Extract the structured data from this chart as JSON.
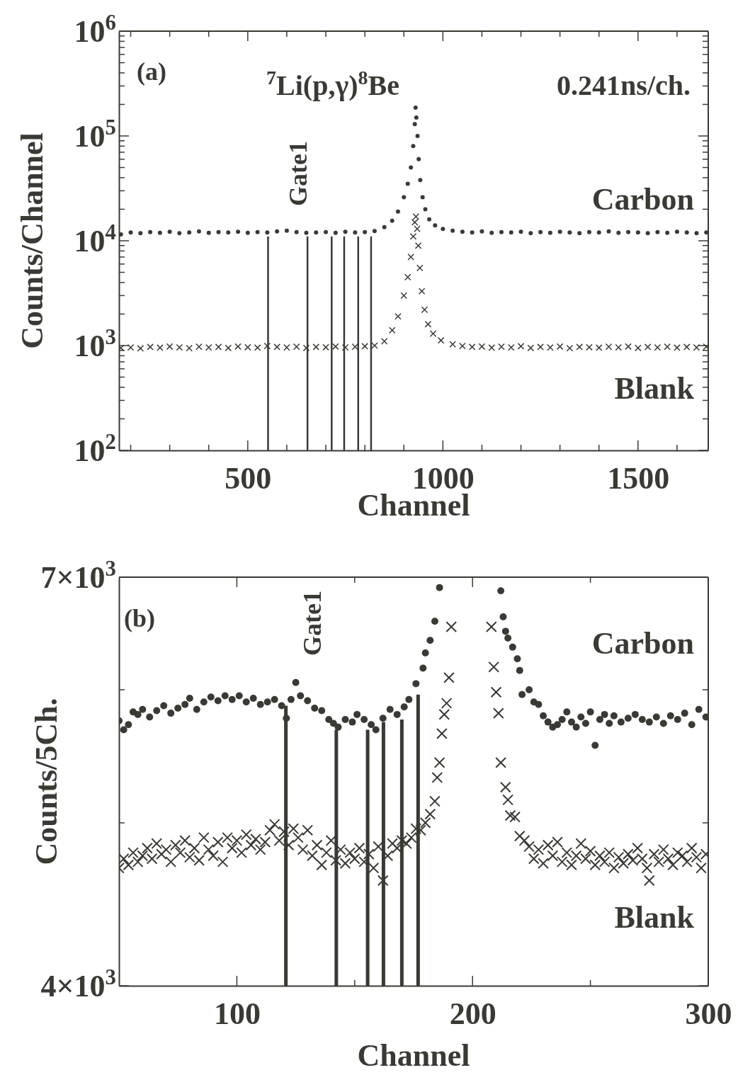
{
  "chart_data": [
    {
      "type": "scatter",
      "legend": "right",
      "xlabel": "Channel",
      "ylabel": "Counts/Channel",
      "log": "y",
      "xlim": [
        170,
        1680
      ],
      "ylim": [
        100,
        1000000
      ],
      "xticks": [
        {
          "value": 200,
          "label": null
        },
        {
          "value": 300,
          "label": null
        },
        {
          "value": 400,
          "label": null
        },
        500,
        {
          "value": 600,
          "label": null
        },
        {
          "value": 700,
          "label": null
        },
        {
          "value": 800,
          "label": null
        },
        {
          "value": 900,
          "label": null
        },
        1000,
        {
          "value": 1100,
          "label": null
        },
        {
          "value": 1200,
          "label": null
        },
        {
          "value": 1300,
          "label": null
        },
        {
          "value": 1400,
          "label": null
        },
        1500,
        {
          "value": 1600,
          "label": null
        }
      ],
      "yticks": [
        {
          "value": 100,
          "label": "10$^{2}$"
        },
        {
          "value": 200,
          "label": null
        },
        {
          "value": 300,
          "label": null
        },
        {
          "value": 400,
          "label": null
        },
        {
          "value": 500,
          "label": null
        },
        {
          "value": 600,
          "label": null
        },
        {
          "value": 700,
          "label": null
        },
        {
          "value": 800,
          "label": null
        },
        {
          "value": 900,
          "label": null
        },
        {
          "value": 1000,
          "label": "10$^{3}$"
        },
        {
          "value": 2000,
          "label": null
        },
        {
          "value": 3000,
          "label": null
        },
        {
          "value": 4000,
          "label": null
        },
        {
          "value": 5000,
          "label": null
        },
        {
          "value": 6000,
          "label": null
        },
        {
          "value": 7000,
          "label": null
        },
        {
          "value": 8000,
          "label": null
        },
        {
          "value": 9000,
          "label": null
        },
        {
          "value": 10000,
          "label": "10$^{4}$"
        },
        {
          "value": 20000,
          "label": null
        },
        {
          "value": 30000,
          "label": null
        },
        {
          "value": 40000,
          "label": null
        },
        {
          "value": 50000,
          "label": null
        },
        {
          "value": 60000,
          "label": null
        },
        {
          "value": 70000,
          "label": null
        },
        {
          "value": 80000,
          "label": null
        },
        {
          "value": 90000,
          "label": null
        },
        {
          "value": 100000,
          "label": "10$^{5}$"
        },
        {
          "value": 200000,
          "label": null
        },
        {
          "value": 300000,
          "label": null
        },
        {
          "value": 400000,
          "label": null
        },
        {
          "value": 500000,
          "label": null
        },
        {
          "value": 600000,
          "label": null
        },
        {
          "value": 700000,
          "label": null
        },
        {
          "value": 800000,
          "label": null
        },
        {
          "value": 900000,
          "label": null
        },
        {
          "value": 1000000,
          "label": "10$^{6}$"
        }
      ],
      "annotations": [
        "(a)",
        "$^{7}$Li(p,γ)$^{8}$Be",
        "0.241ns/ch.",
        "Gate1"
      ],
      "series": [
        {
          "name": "Carbon",
          "color": "#3a3a35",
          "marker": "circle",
          "x": [
            175,
            200,
            225,
            250,
            275,
            300,
            325,
            350,
            375,
            400,
            425,
            450,
            475,
            500,
            525,
            550,
            575,
            600,
            625,
            650,
            675,
            700,
            725,
            750,
            775,
            800,
            825,
            850,
            870,
            885,
            900,
            910,
            918,
            924,
            928,
            930,
            932,
            935,
            938,
            942,
            948,
            955,
            965,
            980,
            1000,
            1025,
            1050,
            1075,
            1100,
            1125,
            1150,
            1175,
            1200,
            1225,
            1250,
            1275,
            1300,
            1325,
            1350,
            1375,
            1400,
            1425,
            1450,
            1475,
            1500,
            1525,
            1550,
            1575,
            1600,
            1625,
            1650,
            1675
          ],
          "values": [
            11500,
            12000,
            11800,
            12100,
            11900,
            12200,
            11800,
            12000,
            12300,
            11900,
            12100,
            12000,
            12200,
            11900,
            12100,
            12000,
            12300,
            12500,
            12100,
            11900,
            12000,
            12100,
            11900,
            12200,
            12000,
            12100,
            12400,
            13500,
            15500,
            19000,
            26000,
            35000,
            50000,
            80000,
            130000,
            186000,
            150000,
            100000,
            60000,
            38000,
            26000,
            20000,
            16000,
            14000,
            13000,
            12500,
            12200,
            12000,
            12300,
            11900,
            12100,
            12000,
            12200,
            11800,
            12100,
            11900,
            12200,
            12000,
            11800,
            12100,
            12000,
            12300,
            11900,
            12100,
            12000,
            11800,
            12100,
            11900,
            12200,
            12000,
            11800,
            12000
          ]
        },
        {
          "name": "Blank",
          "color": "#3a3a35",
          "marker": "cross",
          "x": [
            175,
            200,
            225,
            250,
            275,
            300,
            325,
            350,
            375,
            400,
            425,
            450,
            475,
            500,
            525,
            550,
            575,
            600,
            625,
            650,
            675,
            700,
            725,
            750,
            775,
            800,
            825,
            850,
            870,
            885,
            900,
            910,
            918,
            924,
            928,
            931,
            934,
            937,
            941,
            946,
            953,
            962,
            975,
            995,
            1025,
            1050,
            1075,
            1100,
            1125,
            1150,
            1175,
            1200,
            1225,
            1250,
            1275,
            1300,
            1325,
            1350,
            1375,
            1400,
            1425,
            1450,
            1475,
            1500,
            1525,
            1550,
            1575,
            1600,
            1625,
            1650,
            1675
          ],
          "values": [
            950,
            960,
            940,
            970,
            955,
            980,
            960,
            945,
            975,
            960,
            970,
            950,
            980,
            965,
            955,
            990,
            970,
            960,
            975,
            950,
            970,
            965,
            980,
            960,
            975,
            985,
            1000,
            1100,
            1400,
            1900,
            3000,
            4500,
            7000,
            11000,
            15000,
            17000,
            13000,
            9000,
            5500,
            3300,
            2200,
            1600,
            1300,
            1120,
            1030,
            990,
            970,
            980,
            955,
            975,
            960,
            985,
            950,
            970,
            960,
            980,
            945,
            970,
            965,
            955,
            975,
            960,
            980,
            950,
            970,
            960,
            975,
            955,
            970,
            960,
            975
          ]
        },
        {
          "type": "bar",
          "color": "#3a3a35",
          "x": [
            552,
            653,
            715,
            747,
            783,
            816
          ],
          "values": [
            11000,
            11000,
            11000,
            11000,
            11000,
            11000
          ]
        }
      ]
    },
    {
      "type": "scatter",
      "legend": "right",
      "xlabel": "Channel",
      "ylabel": "Counts/5Ch.",
      "log": "y",
      "xlim": [
        50,
        300
      ],
      "ylim": [
        4000,
        7000
      ],
      "xticks": [
        100,
        {
          "value": 150,
          "label": null
        },
        200,
        {
          "value": 250,
          "label": null
        },
        300
      ],
      "yticks": [
        {
          "value": 4000,
          "label": "4×10$^{3}$"
        },
        {
          "value": 5000,
          "label": null
        },
        {
          "value": 6000,
          "label": null
        },
        {
          "value": 7000,
          "label": "7×10$^{3}$"
        }
      ],
      "annotations": [
        "(b)",
        "Gate1"
      ],
      "series": [
        {
          "name": "Carbon",
          "color": "#3a3a35",
          "marker": "circle",
          "x": [
            50,
            52,
            54,
            56,
            58,
            60,
            63,
            66,
            69,
            72,
            75,
            78,
            80,
            83,
            86,
            89,
            92,
            95,
            98,
            101,
            104,
            107,
            110,
            113,
            116,
            119,
            121,
            123,
            125,
            127,
            130,
            133,
            136,
            139,
            141,
            143,
            146,
            149,
            151,
            154,
            157,
            159,
            162,
            165,
            168,
            171,
            173,
            176,
            179,
            180,
            182,
            184,
            186,
            212,
            213,
            214,
            215,
            217,
            219,
            220,
            221,
            224,
            226,
            228,
            230,
            232,
            234,
            236,
            238,
            240,
            242,
            244,
            246,
            248,
            250,
            252,
            254,
            256,
            258,
            260,
            263,
            266,
            269,
            272,
            275,
            278,
            281,
            284,
            287,
            290,
            293,
            296,
            299
          ],
          "values": [
            5750,
            5680,
            5720,
            5820,
            5800,
            5840,
            5780,
            5830,
            5870,
            5810,
            5850,
            5880,
            5930,
            5840,
            5900,
            5940,
            5910,
            5950,
            5920,
            5950,
            5900,
            5930,
            5880,
            5900,
            5920,
            5870,
            5770,
            5920,
            6060,
            5950,
            5910,
            5850,
            5830,
            5760,
            5730,
            5700,
            5760,
            5740,
            5800,
            5760,
            5720,
            5680,
            5770,
            5840,
            5800,
            5860,
            5920,
            6050,
            6180,
            6310,
            6420,
            6590,
            6900,
            6870,
            6630,
            6500,
            6440,
            6360,
            6260,
            6160,
            5960,
            6000,
            5900,
            5880,
            5790,
            5740,
            5700,
            5720,
            5760,
            5820,
            5740,
            5700,
            5780,
            5730,
            5820,
            5560,
            5760,
            5800,
            5730,
            5790,
            5740,
            5770,
            5800,
            5760,
            5740,
            5780,
            5730,
            5790,
            5760,
            5810,
            5720,
            5840,
            5780
          ]
        },
        {
          "name": "Blank",
          "color": "#3a3a35",
          "marker": "cross",
          "x": [
            50,
            52,
            54,
            56,
            58,
            60,
            62,
            64,
            66,
            68,
            70,
            72,
            74,
            76,
            78,
            80,
            82,
            84,
            86,
            88,
            90,
            92,
            94,
            96,
            98,
            100,
            102,
            104,
            106,
            108,
            110,
            112,
            114,
            116,
            118,
            120,
            122,
            124,
            126,
            128,
            130,
            132,
            134,
            136,
            138,
            140,
            142,
            144,
            146,
            148,
            150,
            152,
            154,
            156,
            158,
            160,
            162,
            164,
            166,
            168,
            170,
            172,
            174,
            176,
            178,
            180,
            182,
            184,
            185,
            186,
            187,
            188,
            189,
            190,
            191,
            208,
            209,
            210,
            211,
            212,
            214,
            215,
            216,
            218,
            220,
            222,
            224,
            226,
            228,
            230,
            232,
            234,
            236,
            238,
            240,
            242,
            244,
            246,
            248,
            250,
            252,
            254,
            256,
            258,
            260,
            262,
            264,
            266,
            268,
            270,
            272,
            274,
            275,
            277,
            279,
            281,
            283,
            285,
            287,
            289,
            291,
            293,
            295,
            297,
            299
          ],
          "values": [
            4700,
            4760,
            4720,
            4800,
            4740,
            4780,
            4830,
            4760,
            4860,
            4790,
            4820,
            4740,
            4850,
            4800,
            4880,
            4770,
            4830,
            4750,
            4900,
            4820,
            4780,
            4870,
            4740,
            4900,
            4830,
            4880,
            4800,
            4920,
            4850,
            4890,
            4820,
            4870,
            4950,
            4990,
            4880,
            4940,
            4850,
            4960,
            4900,
            4820,
            4950,
            4780,
            4850,
            4720,
            4800,
            4880,
            4750,
            4820,
            4730,
            4800,
            4760,
            4830,
            4740,
            4790,
            4700,
            4840,
            4620,
            4780,
            4860,
            4830,
            4880,
            4860,
            4900,
            4960,
            4950,
            5000,
            5060,
            5150,
            5320,
            5430,
            5650,
            5800,
            5890,
            6100,
            6540,
            6540,
            6190,
            5980,
            5810,
            5430,
            5250,
            5160,
            5050,
            5040,
            4910,
            4880,
            4840,
            4760,
            4820,
            4730,
            4850,
            4780,
            4870,
            4740,
            4800,
            4720,
            4780,
            4860,
            4760,
            4810,
            4720,
            4780,
            4740,
            4800,
            4700,
            4770,
            4730,
            4790,
            4750,
            4830,
            4760,
            4700,
            4620,
            4790,
            4740,
            4820,
            4760,
            4720,
            4800,
            4780,
            4740,
            4830,
            4770,
            4700,
            4790
          ]
        },
        {
          "type": "bar",
          "color": "#3a3a35",
          "x": [
            120.8,
            142.2,
            155.5,
            162.2,
            170,
            176.9
          ],
          "values": [
            5870,
            5680,
            5680,
            5740,
            5760,
            5960
          ]
        }
      ]
    }
  ]
}
